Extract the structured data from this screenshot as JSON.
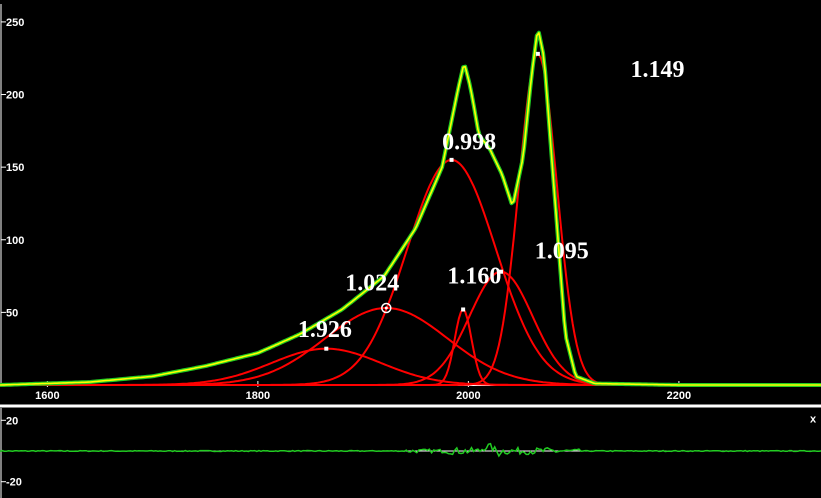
{
  "chart_data": [
    {
      "type": "line",
      "panel": "main-fit",
      "title": "",
      "xlabel": "",
      "ylabel": "",
      "xlim": [
        1555,
        2335
      ],
      "ylim": [
        0,
        252
      ],
      "x_ticks": [
        1600,
        1800,
        2000,
        2200
      ],
      "x_tick_labels": [
        "1600",
        "1800",
        "2000",
        "2200"
      ],
      "y_ticks": [
        50,
        100,
        150,
        200,
        250
      ],
      "y_tick_labels": [
        "50",
        "100",
        "150",
        "200",
        "250"
      ],
      "grid": false,
      "colors": {
        "measured": "#22cc22",
        "envelope": "#ffff00",
        "component": "#ff0000",
        "peak_marker": "#ffffff",
        "axis": "#ffffff",
        "background": "#000000"
      },
      "peaks": [
        {
          "center": 1865,
          "amplitude": 25,
          "width": 52,
          "label": "1.926"
        },
        {
          "center": 1922,
          "amplitude": 53,
          "width": 58,
          "label": "1.024",
          "selected": true
        },
        {
          "center": 1984,
          "amplitude": 155,
          "width": 42,
          "label": "0.998"
        },
        {
          "center": 1995,
          "amplitude": 52,
          "width": 8,
          "label": "1.160"
        },
        {
          "center": 2031,
          "amplitude": 78,
          "width": 30,
          "label": "1.095"
        },
        {
          "center": 2066,
          "amplitude": 228,
          "width": 18,
          "label": "1.149"
        }
      ],
      "measured_trace": [
        [
          1555,
          0
        ],
        [
          1640,
          2
        ],
        [
          1700,
          6
        ],
        [
          1750,
          13
        ],
        [
          1800,
          22
        ],
        [
          1840,
          35
        ],
        [
          1880,
          52
        ],
        [
          1920,
          75
        ],
        [
          1950,
          108
        ],
        [
          1975,
          150
        ],
        [
          1990,
          203
        ],
        [
          1996,
          222
        ],
        [
          2002,
          205
        ],
        [
          2010,
          172
        ],
        [
          2020,
          163
        ],
        [
          2032,
          145
        ],
        [
          2042,
          123
        ],
        [
          2052,
          157
        ],
        [
          2060,
          213
        ],
        [
          2066,
          246
        ],
        [
          2072,
          225
        ],
        [
          2082,
          130
        ],
        [
          2092,
          35
        ],
        [
          2102,
          6
        ],
        [
          2120,
          1
        ],
        [
          2200,
          0
        ],
        [
          2335,
          0
        ]
      ],
      "annotations": [
        {
          "text": "1.926",
          "x": 1838,
          "y": 33
        },
        {
          "text": "1.024",
          "x": 1883,
          "y": 65
        },
        {
          "text": "0.998",
          "x": 1975,
          "y": 162
        },
        {
          "text": "1.160",
          "x": 1980,
          "y": 70
        },
        {
          "text": "1.095",
          "x": 2063,
          "y": 87
        },
        {
          "text": "1.149",
          "x": 2154,
          "y": 212
        }
      ]
    },
    {
      "type": "line",
      "panel": "residual",
      "title": "",
      "xlabel": "",
      "ylabel": "",
      "xlim": [
        1555,
        2335
      ],
      "ylim": [
        -28,
        28
      ],
      "y_tick_labels": [
        "20",
        "-20"
      ],
      "y_ticks": [
        20,
        -20
      ],
      "corner_label": "x",
      "colors": {
        "residual": "#22cc22",
        "zero_line": "#ffffff"
      }
    }
  ]
}
